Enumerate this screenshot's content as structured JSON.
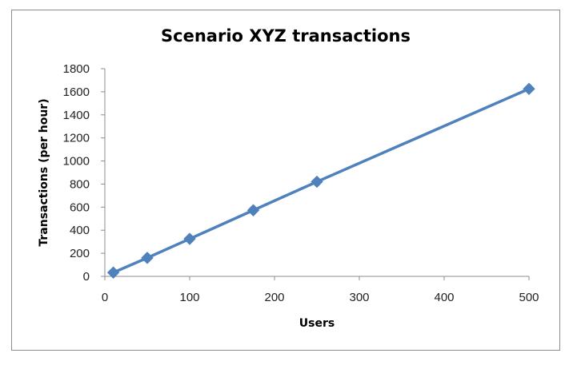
{
  "chart_data": {
    "type": "line",
    "title": "Scenario XYZ transactions",
    "xlabel": "Users",
    "ylabel": "Transactions (per hour)",
    "xlim": [
      0,
      500
    ],
    "ylim": [
      0,
      1800
    ],
    "xticks": [
      0,
      100,
      200,
      300,
      400,
      500
    ],
    "yticks": [
      0,
      200,
      400,
      600,
      800,
      1000,
      1200,
      1400,
      1600,
      1800
    ],
    "grid": false,
    "legend": "none",
    "series": [
      {
        "color": "#4F81BD",
        "marker": "diamond",
        "points": [
          {
            "x": 10,
            "y": 33
          },
          {
            "x": 50,
            "y": 160
          },
          {
            "x": 100,
            "y": 325
          },
          {
            "x": 175,
            "y": 573
          },
          {
            "x": 250,
            "y": 820
          },
          {
            "x": 500,
            "y": 1625
          }
        ]
      }
    ]
  }
}
